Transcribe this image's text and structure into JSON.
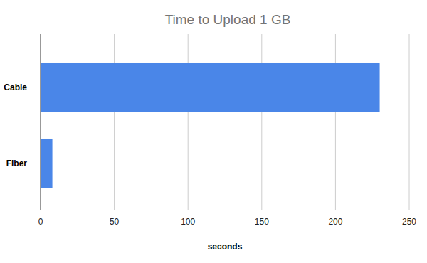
{
  "chart_data": {
    "type": "bar",
    "orientation": "horizontal",
    "title": "Time to Upload 1 GB",
    "x_label": "seconds",
    "categories": [
      "Cable",
      "Fiber"
    ],
    "values": [
      230,
      8
    ],
    "color": "#4a86e8",
    "xlim": [
      0,
      250
    ],
    "xticks": [
      0,
      50,
      100,
      150,
      200,
      250
    ],
    "grid": true
  }
}
